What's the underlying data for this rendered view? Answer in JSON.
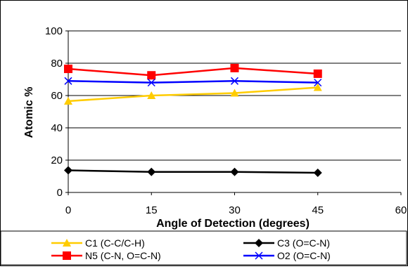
{
  "chart_data": {
    "type": "line",
    "title": "",
    "xlabel": "Angle of Detection (degrees)",
    "ylabel": "Atomic %",
    "xlim": [
      0,
      60
    ],
    "ylim": [
      0,
      100
    ],
    "xticks": [
      0,
      15,
      30,
      45,
      60
    ],
    "yticks": [
      0,
      20,
      40,
      60,
      80,
      100
    ],
    "grid": "horizontal major gridlines",
    "legend_position": "bottom",
    "x": [
      0,
      15,
      30,
      45
    ],
    "series": [
      {
        "name": "C1 (C-C/C-H)",
        "values": [
          56.5,
          60,
          61.5,
          65
        ],
        "color": "#FFCC00",
        "marker": "triangle"
      },
      {
        "name": "C3 (O=C-N)",
        "values": [
          13.7,
          12.7,
          12.7,
          12.2
        ],
        "color": "#000000",
        "marker": "diamond"
      },
      {
        "name": "N5 (C-N, O=C-N)",
        "values": [
          76.5,
          72.5,
          77,
          73.5
        ],
        "color": "#FF0000",
        "marker": "square"
      },
      {
        "name": "O2 (O=C-N)",
        "values": [
          69,
          68,
          69,
          68
        ],
        "color": "#0000FF",
        "marker": "x"
      }
    ]
  }
}
